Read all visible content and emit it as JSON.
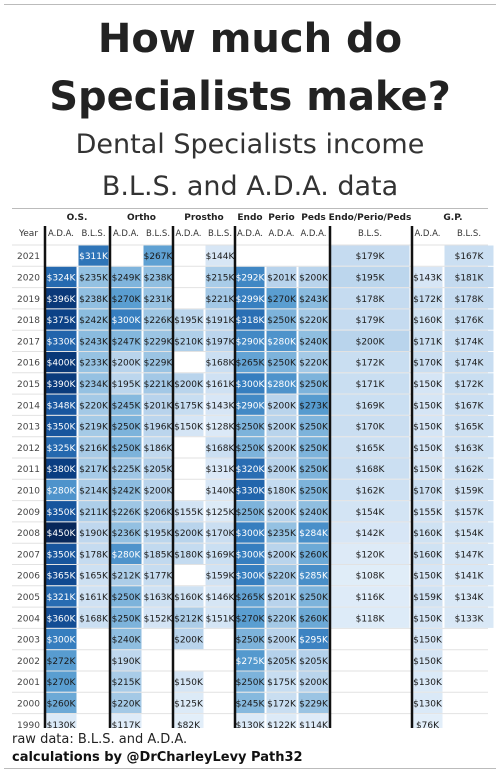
{
  "title_line1": "How much do",
  "title_line2": "Specialists make?",
  "subtitle_line1": "Dental Specialists income",
  "subtitle_line2": "B.L.S. and A.D.A. data",
  "footer_line1": "raw data: B.L.S. and A.D.A.",
  "footer_line2": "calculations by @DrCharleyLevy Path32",
  "chart_data": {
    "type": "table",
    "row_header": "Year",
    "groups": [
      "O.S.",
      "Ortho",
      "Prostho",
      "Endo",
      "Perio",
      "Peds",
      "Endo/Perio/Peds",
      "G.P."
    ],
    "columns": [
      {
        "group": "O.S.",
        "source": "A.D.A."
      },
      {
        "group": "O.S.",
        "source": "B.L.S."
      },
      {
        "group": "Ortho",
        "source": "A.D.A."
      },
      {
        "group": "Ortho",
        "source": "B.L.S."
      },
      {
        "group": "Prostho",
        "source": "A.D.A."
      },
      {
        "group": "Prostho",
        "source": "B.L.S."
      },
      {
        "group": "Endo",
        "source": "A.D.A."
      },
      {
        "group": "Perio",
        "source": "A.D.A."
      },
      {
        "group": "Peds",
        "source": "A.D.A."
      },
      {
        "group": "Endo/Perio/Peds",
        "source": "B.L.S."
      },
      {
        "group": "G.P.",
        "source": "A.D.A."
      },
      {
        "group": "G.P.",
        "source": "B.L.S."
      }
    ],
    "rows": [
      {
        "year": "2021",
        "values": [
          null,
          311,
          null,
          267,
          null,
          144,
          null,
          null,
          null,
          179,
          null,
          167
        ]
      },
      {
        "year": "2020",
        "values": [
          324,
          235,
          249,
          238,
          null,
          215,
          292,
          201,
          200,
          195,
          143,
          181
        ]
      },
      {
        "year": "2019",
        "values": [
          396,
          238,
          270,
          231,
          null,
          221,
          299,
          270,
          243,
          178,
          172,
          178
        ]
      },
      {
        "year": "2018",
        "values": [
          375,
          242,
          300,
          226,
          195,
          191,
          318,
          250,
          220,
          179,
          160,
          176
        ]
      },
      {
        "year": "2017",
        "values": [
          330,
          243,
          247,
          229,
          210,
          197,
          290,
          280,
          240,
          200,
          171,
          174
        ]
      },
      {
        "year": "2016",
        "values": [
          400,
          233,
          200,
          229,
          null,
          168,
          265,
          250,
          220,
          172,
          170,
          174
        ]
      },
      {
        "year": "2015",
        "values": [
          390,
          234,
          195,
          221,
          200,
          161,
          300,
          280,
          250,
          171,
          150,
          172
        ]
      },
      {
        "year": "2014",
        "values": [
          348,
          220,
          245,
          201,
          175,
          143,
          290,
          200,
          273,
          169,
          150,
          167
        ]
      },
      {
        "year": "2013",
        "values": [
          350,
          219,
          250,
          196,
          150,
          128,
          250,
          200,
          250,
          170,
          150,
          165
        ]
      },
      {
        "year": "2012",
        "values": [
          325,
          216,
          250,
          186,
          null,
          168,
          250,
          200,
          250,
          165,
          150,
          163
        ]
      },
      {
        "year": "2011",
        "values": [
          380,
          217,
          225,
          205,
          null,
          131,
          320,
          200,
          250,
          168,
          150,
          162
        ]
      },
      {
        "year": "2010",
        "values": [
          280,
          214,
          242,
          200,
          null,
          140,
          330,
          180,
          250,
          162,
          170,
          159
        ]
      },
      {
        "year": "2009",
        "values": [
          350,
          211,
          226,
          206,
          155,
          125,
          250,
          200,
          240,
          154,
          155,
          157
        ]
      },
      {
        "year": "2008",
        "values": [
          450,
          190,
          236,
          195,
          200,
          170,
          300,
          235,
          284,
          142,
          160,
          154
        ]
      },
      {
        "year": "2007",
        "values": [
          350,
          178,
          280,
          185,
          180,
          169,
          300,
          200,
          260,
          120,
          160,
          147
        ]
      },
      {
        "year": "2006",
        "values": [
          365,
          165,
          212,
          177,
          null,
          159,
          300,
          220,
          285,
          108,
          150,
          141
        ]
      },
      {
        "year": "2005",
        "values": [
          321,
          161,
          250,
          163,
          160,
          146,
          265,
          201,
          250,
          116,
          159,
          134
        ]
      },
      {
        "year": "2004",
        "values": [
          360,
          168,
          250,
          152,
          212,
          151,
          270,
          220,
          260,
          118,
          150,
          133
        ]
      },
      {
        "year": "2003",
        "values": [
          300,
          null,
          240,
          null,
          200,
          null,
          250,
          200,
          295,
          null,
          150,
          null
        ]
      },
      {
        "year": "2002",
        "values": [
          272,
          null,
          190,
          null,
          null,
          null,
          275,
          205,
          205,
          null,
          150,
          null
        ]
      },
      {
        "year": "2001",
        "values": [
          270,
          null,
          215,
          null,
          150,
          null,
          250,
          175,
          200,
          null,
          130,
          null
        ]
      },
      {
        "year": "2000",
        "values": [
          260,
          null,
          220,
          null,
          125,
          null,
          245,
          172,
          229,
          null,
          130,
          null
        ]
      },
      {
        "year": "1990",
        "values": [
          130,
          null,
          117,
          null,
          82,
          null,
          130,
          122,
          114,
          null,
          76,
          null
        ]
      }
    ],
    "value_format": "${v}K",
    "shading": "blue intensity scales with value"
  }
}
